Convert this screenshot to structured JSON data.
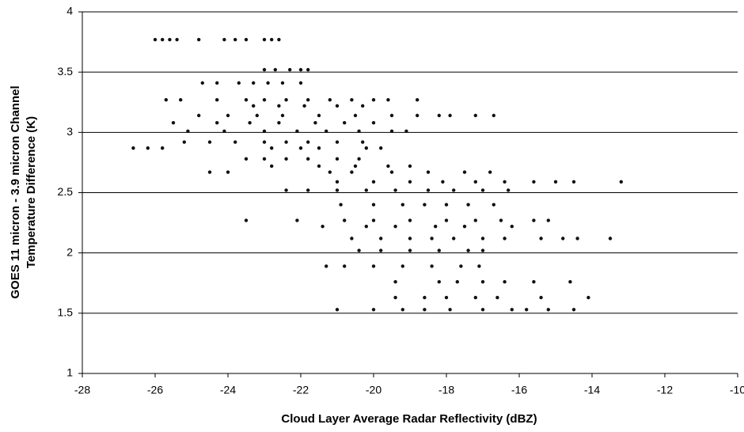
{
  "chart_data": {
    "type": "scatter",
    "xlabel": "Cloud Layer Average Radar Reflectivity (dBZ)",
    "ylabel": [
      "GOES 11 micron - 3.9 micron Channel",
      "Temperature Difference (K)"
    ],
    "color": "#111111",
    "grid": true,
    "xlim": [
      -28,
      -10
    ],
    "xticks": [
      -28,
      -26,
      -24,
      -22,
      -20,
      -18,
      -16,
      -14,
      -12,
      -10
    ],
    "ylim": [
      1,
      4
    ],
    "yticks": [
      1,
      1.5,
      2,
      2.5,
      3,
      3.5,
      4
    ],
    "x": [
      -26,
      -25.8,
      -25.6,
      -25.4,
      -24.8,
      -24.1,
      -23.8,
      -23.5,
      -23.0,
      -22.8,
      -22.6,
      -23.0,
      -22.7,
      -22.3,
      -22.0,
      -21.8,
      -24.7,
      -24.3,
      -23.7,
      -23.3,
      -22.9,
      -22.5,
      -22.0,
      -25.7,
      -25.3,
      -24.3,
      -23.5,
      -23.0,
      -22.4,
      -21.8,
      -21.2,
      -20.6,
      -20.0,
      -19.6,
      -18.8,
      -23.3,
      -22.6,
      -21.9,
      -21.0,
      -20.3,
      -24.8,
      -24.0,
      -23.2,
      -22.5,
      -21.5,
      -20.5,
      -19.5,
      -18.8,
      -18.2,
      -17.9,
      -17.2,
      -16.7,
      -25.5,
      -24.3,
      -23.4,
      -22.6,
      -21.6,
      -20.8,
      -20.0,
      -25.1,
      -24.1,
      -23.0,
      -22.1,
      -21.3,
      -20.4,
      -19.5,
      -19.1,
      -25.2,
      -24.5,
      -23.8,
      -23.0,
      -22.4,
      -21.8,
      -21.0,
      -20.3,
      -26.6,
      -26.2,
      -25.8,
      -22.8,
      -22.0,
      -21.5,
      -20.2,
      -19.8,
      -23.5,
      -23.0,
      -22.4,
      -21.8,
      -21.0,
      -20.4,
      -22.8,
      -21.5,
      -20.5,
      -19.6,
      -19.0,
      -24.5,
      -24.0,
      -21.2,
      -20.6,
      -19.5,
      -18.5,
      -17.5,
      -16.8,
      -21.0,
      -20.0,
      -19.0,
      -18.1,
      -17.2,
      -16.4,
      -15.6,
      -15.0,
      -14.5,
      -13.2,
      -22.4,
      -21.8,
      -21.0,
      -20.2,
      -19.4,
      -18.5,
      -17.8,
      -17.0,
      -16.3,
      -20.9,
      -20.0,
      -19.2,
      -18.6,
      -18.0,
      -17.4,
      -16.7,
      -23.5,
      -22.1,
      -20.8,
      -20.0,
      -19.0,
      -18.0,
      -17.2,
      -16.5,
      -15.6,
      -15.2,
      -21.4,
      -20.2,
      -19.4,
      -18.3,
      -17.5,
      -16.2,
      -20.6,
      -19.8,
      -19.0,
      -18.4,
      -17.8,
      -17.0,
      -16.4,
      -15.4,
      -14.8,
      -14.4,
      -13.5,
      -20.4,
      -19.8,
      -19.0,
      -18.2,
      -17.4,
      -17.0,
      -21.3,
      -20.8,
      -20.0,
      -19.2,
      -18.4,
      -17.6,
      -17.1,
      -19.4,
      -18.2,
      -17.7,
      -17.0,
      -16.4,
      -15.6,
      -14.6,
      -19.4,
      -18.6,
      -18.0,
      -17.2,
      -16.6,
      -15.4,
      -14.1,
      -21.0,
      -20.0,
      -19.2,
      -18.6,
      -17.9,
      -17.0,
      -16.2,
      -15.8,
      -15.2,
      -14.5
    ],
    "values": [
      3.77,
      3.77,
      3.77,
      3.77,
      3.77,
      3.77,
      3.77,
      3.77,
      3.77,
      3.77,
      3.77,
      3.52,
      3.52,
      3.52,
      3.52,
      3.52,
      3.41,
      3.41,
      3.41,
      3.41,
      3.41,
      3.41,
      3.41,
      3.27,
      3.27,
      3.27,
      3.27,
      3.27,
      3.27,
      3.27,
      3.27,
      3.27,
      3.27,
      3.27,
      3.27,
      3.22,
      3.22,
      3.22,
      3.22,
      3.22,
      3.14,
      3.14,
      3.14,
      3.14,
      3.14,
      3.14,
      3.14,
      3.14,
      3.14,
      3.14,
      3.14,
      3.14,
      3.08,
      3.08,
      3.08,
      3.08,
      3.08,
      3.08,
      3.08,
      3.01,
      3.01,
      3.01,
      3.01,
      3.01,
      3.01,
      3.01,
      3.01,
      2.92,
      2.92,
      2.92,
      2.92,
      2.92,
      2.92,
      2.92,
      2.92,
      2.87,
      2.87,
      2.87,
      2.87,
      2.87,
      2.87,
      2.87,
      2.87,
      2.78,
      2.78,
      2.78,
      2.78,
      2.78,
      2.78,
      2.72,
      2.72,
      2.72,
      2.72,
      2.72,
      2.67,
      2.67,
      2.67,
      2.67,
      2.67,
      2.67,
      2.67,
      2.67,
      2.59,
      2.59,
      2.59,
      2.59,
      2.59,
      2.59,
      2.59,
      2.59,
      2.59,
      2.59,
      2.52,
      2.52,
      2.52,
      2.52,
      2.52,
      2.52,
      2.52,
      2.52,
      2.52,
      2.4,
      2.4,
      2.4,
      2.4,
      2.4,
      2.4,
      2.4,
      2.27,
      2.27,
      2.27,
      2.27,
      2.27,
      2.27,
      2.27,
      2.27,
      2.27,
      2.27,
      2.22,
      2.22,
      2.22,
      2.22,
      2.22,
      2.22,
      2.12,
      2.12,
      2.12,
      2.12,
      2.12,
      2.12,
      2.12,
      2.12,
      2.12,
      2.12,
      2.12,
      2.02,
      2.02,
      2.02,
      2.02,
      2.02,
      2.02,
      1.89,
      1.89,
      1.89,
      1.89,
      1.89,
      1.89,
      1.89,
      1.76,
      1.76,
      1.76,
      1.76,
      1.76,
      1.76,
      1.76,
      1.63,
      1.63,
      1.63,
      1.63,
      1.63,
      1.63,
      1.63,
      1.53,
      1.53,
      1.53,
      1.53,
      1.53,
      1.53,
      1.53,
      1.53,
      1.53,
      1.53
    ]
  }
}
